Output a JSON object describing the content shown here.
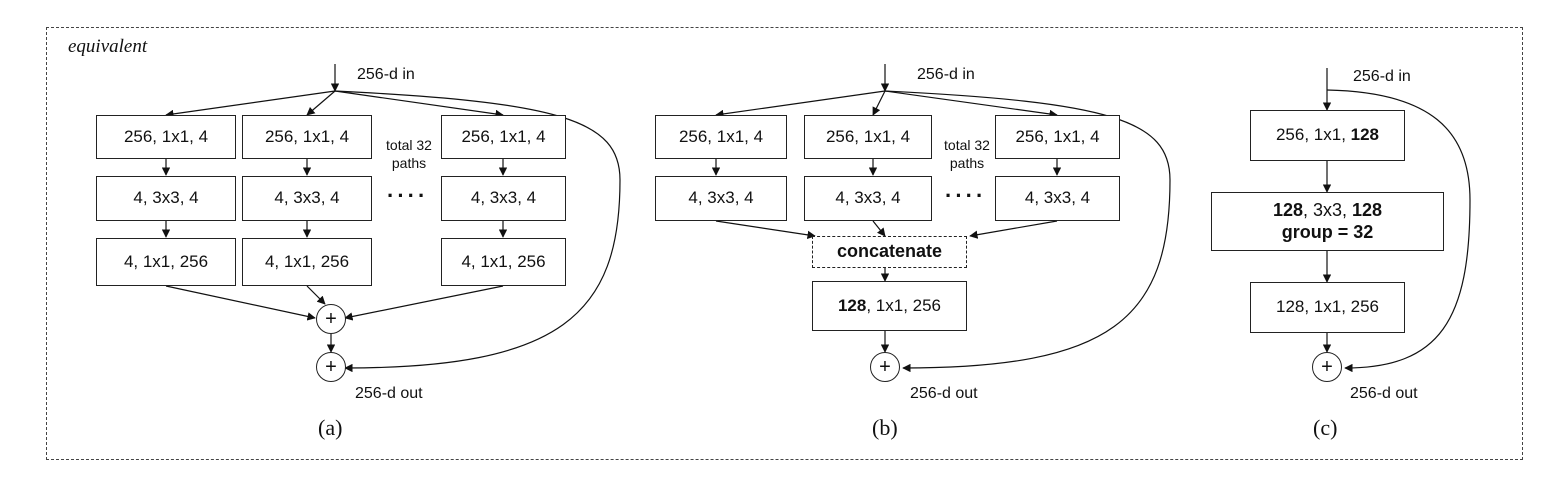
{
  "header": {
    "label": "equivalent"
  },
  "panel_a": {
    "input_label": "256-d in",
    "output_label": "256-d out",
    "caption": "(a)",
    "paths_note": "total 32\npaths",
    "ellipsis": "····",
    "plus": "+",
    "path_boxes": [
      [
        "256, 1x1, 4",
        "4, 3x3, 4",
        "4, 1x1, 256"
      ],
      [
        "256, 1x1, 4",
        "4, 3x3, 4",
        "4, 1x1, 256"
      ],
      [
        "256, 1x1, 4",
        "4, 3x3, 4",
        "4, 1x1, 256"
      ]
    ]
  },
  "panel_b": {
    "input_label": "256-d in",
    "output_label": "256-d out",
    "caption": "(b)",
    "paths_note": "total 32\npaths",
    "ellipsis": "····",
    "plus": "+",
    "path_boxes": [
      [
        "256, 1x1, 4",
        "4, 3x3, 4"
      ],
      [
        "256, 1x1, 4",
        "4, 3x3, 4"
      ],
      [
        "256, 1x1, 4",
        "4, 3x3, 4"
      ]
    ],
    "concat_label": "concatenate",
    "final_box": {
      "bold": "128",
      "rest": ", 1x1, 256"
    }
  },
  "panel_c": {
    "input_label": "256-d in",
    "output_label": "256-d out",
    "caption": "(c)",
    "plus": "+",
    "box1": {
      "rest": "256, 1x1, ",
      "bold": "128"
    },
    "box2": {
      "line1_a": "128",
      "line1_b": ", 3x3, ",
      "line1_c": "128",
      "line2": "group = 32"
    },
    "box3": "128, 1x1, 256"
  }
}
